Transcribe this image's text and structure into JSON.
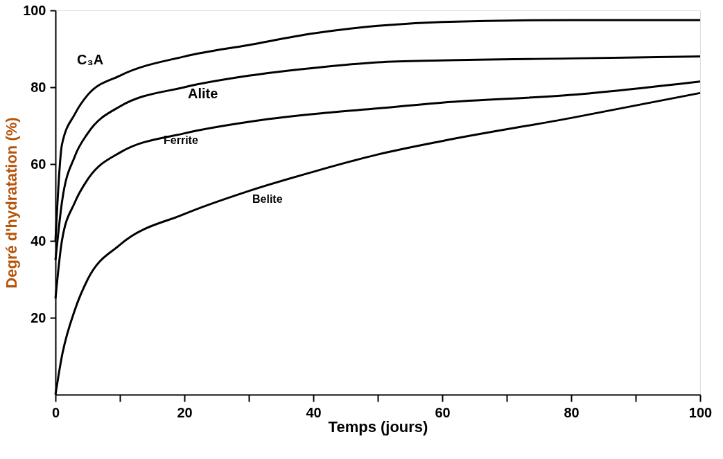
{
  "chart_data": {
    "type": "line",
    "xlabel": "Temps (jours)",
    "ylabel": "Degré d'hydratation (%)",
    "x": [
      0,
      1,
      3,
      5,
      10,
      20,
      30,
      40,
      50,
      60,
      80,
      100
    ],
    "series": [
      {
        "name": "C₃A",
        "color": "#000000",
        "values": [
          40,
          65,
          73,
          78,
          83,
          88,
          91,
          94,
          96,
          97,
          97.5,
          97.5
        ]
      },
      {
        "name": "Alite",
        "color": "#000000",
        "values": [
          35,
          50,
          62,
          68,
          75,
          80,
          83,
          85,
          86.5,
          87,
          87.5,
          88
        ]
      },
      {
        "name": "Ferrite",
        "color": "#000000",
        "values": [
          25,
          40,
          50,
          56,
          63,
          68,
          71,
          73,
          74.5,
          76,
          78,
          81.5
        ]
      },
      {
        "name": "Belite",
        "color": "#000000",
        "values": [
          0,
          10,
          22,
          30,
          39,
          47,
          53,
          58,
          62.5,
          66,
          72,
          78.5
        ]
      }
    ],
    "xlim": [
      0,
      100
    ],
    "ylim": [
      0,
      100
    ],
    "xticks": [
      0,
      {
        "value": 10,
        "label": null
      },
      20,
      {
        "value": 30,
        "label": null
      },
      40,
      {
        "value": 50,
        "label": null
      },
      60,
      {
        "value": 70,
        "label": null
      },
      80,
      {
        "value": 90,
        "label": null
      },
      100
    ],
    "yticks": [
      20,
      40,
      60,
      80,
      100
    ],
    "grid": false,
    "legend": false,
    "marker": "none",
    "line_style": "solid"
  }
}
